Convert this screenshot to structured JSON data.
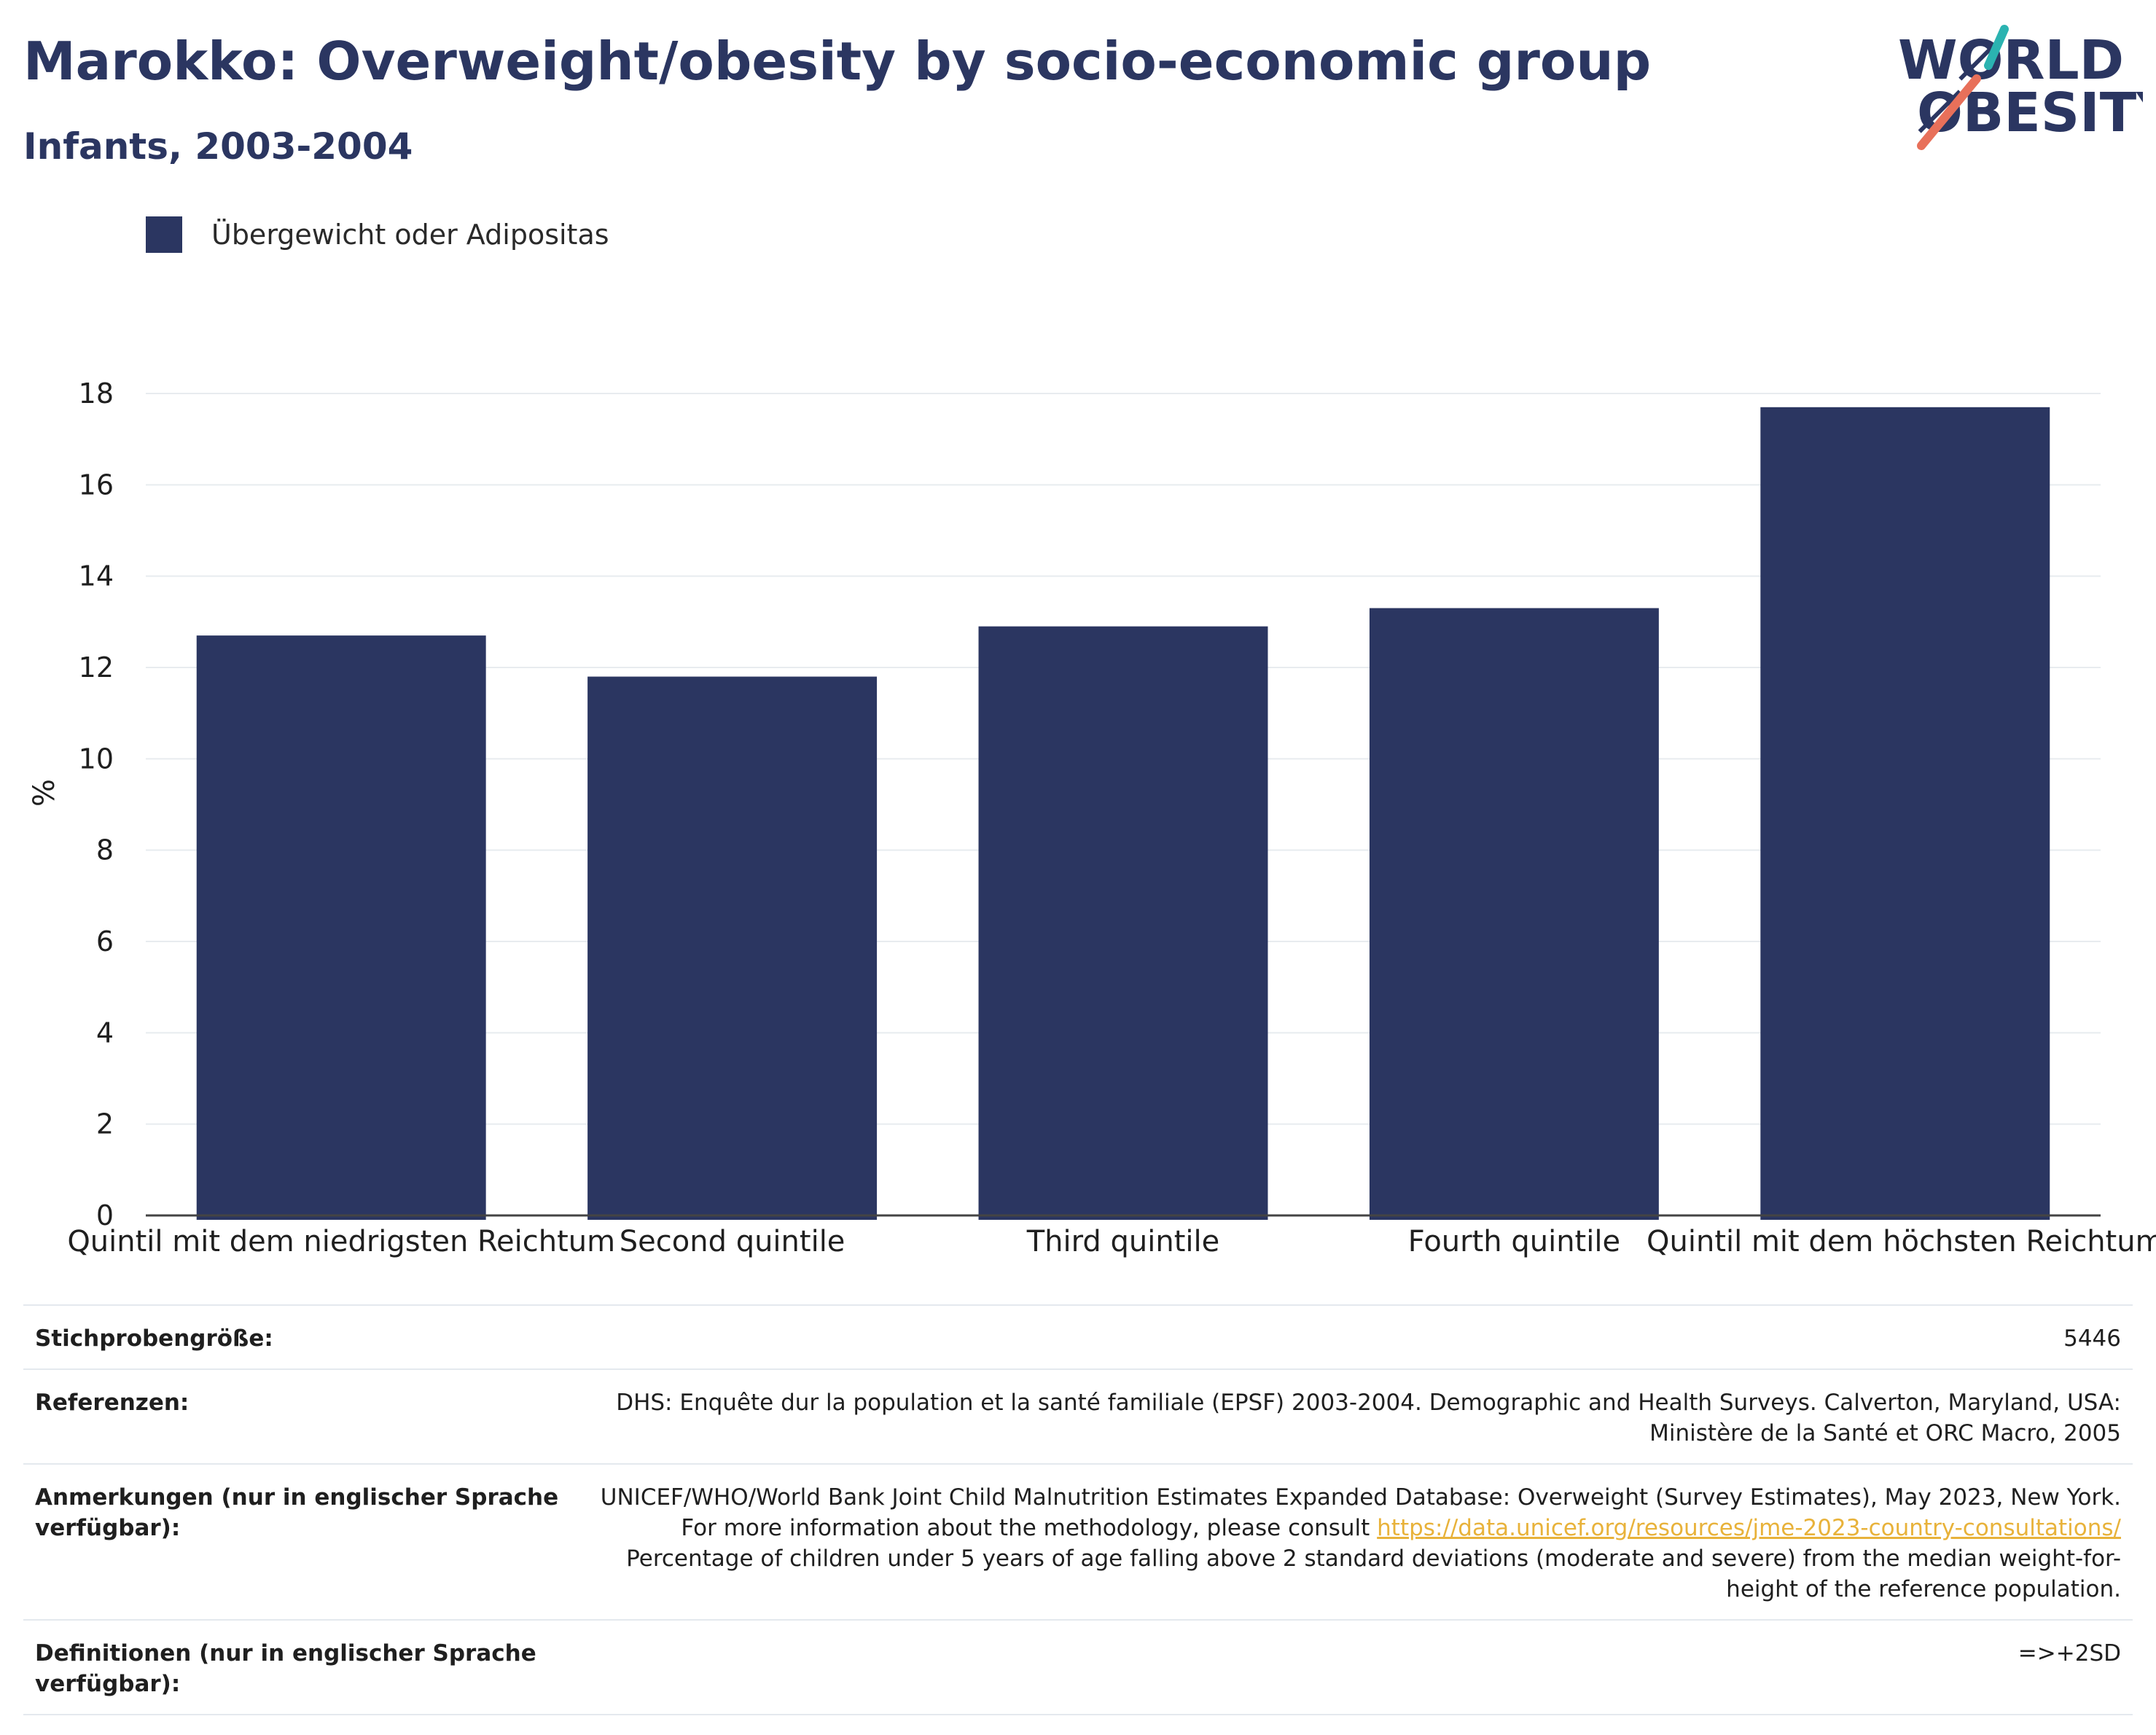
{
  "header": {
    "title": "Marokko: Overweight/obesity by socio-economic group",
    "subtitle": "Infants, 2003-2004"
  },
  "logo": {
    "line1": "WØRLD",
    "line2": "ØBESITY",
    "colors": {
      "text": "#2b3661",
      "slash_top": "#2bb3b1",
      "slash_bottom": "#e8705a"
    }
  },
  "legend": {
    "items": [
      {
        "label": "Übergewicht oder Adipositas",
        "color": "#2b3661"
      }
    ]
  },
  "chart_data": {
    "type": "bar",
    "title": "Marokko: Overweight/obesity by socio-economic group",
    "subtitle": "Infants, 2003-2004",
    "xlabel": "",
    "ylabel": "%",
    "categories": [
      "Quintil mit dem niedrigsten Reichtum",
      "Second quintile",
      "Third quintile",
      "Fourth quintile",
      "Quintil mit dem höchsten Reichtum"
    ],
    "series": [
      {
        "name": "Übergewicht oder Adipositas",
        "values": [
          12.7,
          11.8,
          12.9,
          13.3,
          17.7
        ],
        "color": "#2b3661"
      }
    ],
    "ylim": [
      0,
      18
    ],
    "yticks": [
      0,
      2,
      4,
      6,
      8,
      10,
      12,
      14,
      16,
      18
    ],
    "grid": true,
    "legend_position": "top-left"
  },
  "info": {
    "sample_size": {
      "label": "Stichprobengröße:",
      "value": "5446"
    },
    "references": {
      "label": "Referenzen:",
      "value": "DHS: Enquête dur la population et la santé familiale (EPSF) 2003-2004. Demographic and Health Surveys. Calverton, Maryland, USA: Ministère de la Santé et ORC Macro, 2005"
    },
    "notes": {
      "label": "Anmerkungen (nur in englischer Sprache verfügbar):",
      "value_before": "UNICEF/WHO/World Bank Joint Child Malnutrition Estimates Expanded Database: Overweight (Survey Estimates), May 2023, New York. For more information about the methodology, please consult ",
      "link": "https://data.unicef.org/resources/jme-2023-country-consultations/",
      "value_after": " Percentage of children under 5 years of age falling above 2 standard deviations (moderate and severe) from the median weight-for-height of the reference population."
    },
    "definitions": {
      "label": "Definitionen (nur in englischer Sprache verfügbar):",
      "value": "=>+2SD"
    }
  }
}
